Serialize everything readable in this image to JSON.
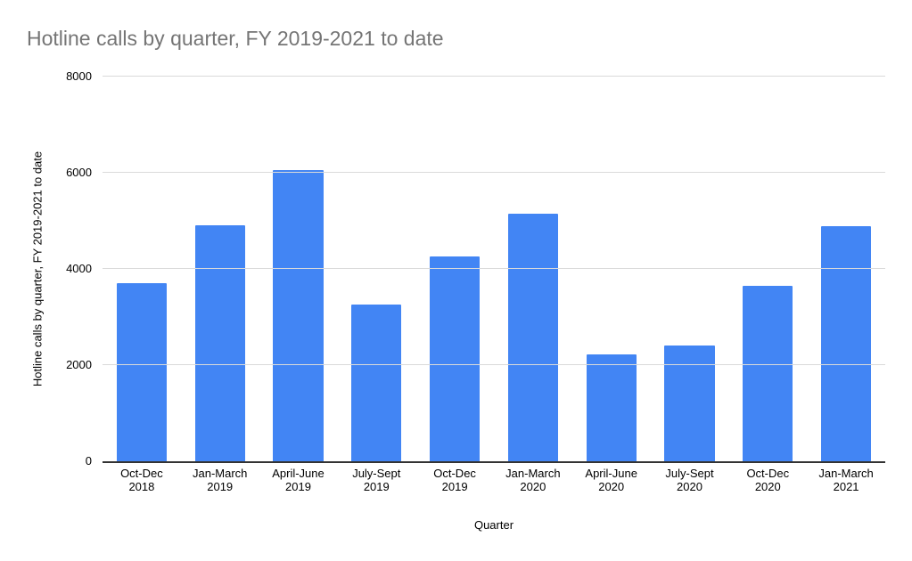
{
  "chart_data": {
    "type": "bar",
    "title": "Hotline calls by quarter, FY 2019-2021 to date",
    "xlabel": "Quarter",
    "ylabel": "Hotline calls by quarter, FY 2019-2021 to date",
    "ylim": [
      0,
      8000
    ],
    "yticks": [
      0,
      2000,
      4000,
      6000,
      8000
    ],
    "grid": "horizontal",
    "legend": "none",
    "bar_color": "#4285f4",
    "title_color": "#757575",
    "axis_text_color": "#000000",
    "gridline_color": "#dadada",
    "axis_line_color": "#333333",
    "background": "#ffffff",
    "categories": [
      {
        "quarter": "Oct-Dec",
        "year": "2018"
      },
      {
        "quarter": "Jan-March",
        "year": "2019"
      },
      {
        "quarter": "April-June",
        "year": "2019"
      },
      {
        "quarter": "July-Sept",
        "year": "2019"
      },
      {
        "quarter": "Oct-Dec",
        "year": "2019"
      },
      {
        "quarter": "Jan-March",
        "year": "2020"
      },
      {
        "quarter": "April-June",
        "year": "2020"
      },
      {
        "quarter": "July-Sept",
        "year": "2020"
      },
      {
        "quarter": "Oct-Dec",
        "year": "2020"
      },
      {
        "quarter": "Jan-March",
        "year": "2021"
      }
    ],
    "values": [
      3700,
      4900,
      6060,
      3260,
      4260,
      5150,
      2220,
      2400,
      3650,
      4880
    ]
  }
}
